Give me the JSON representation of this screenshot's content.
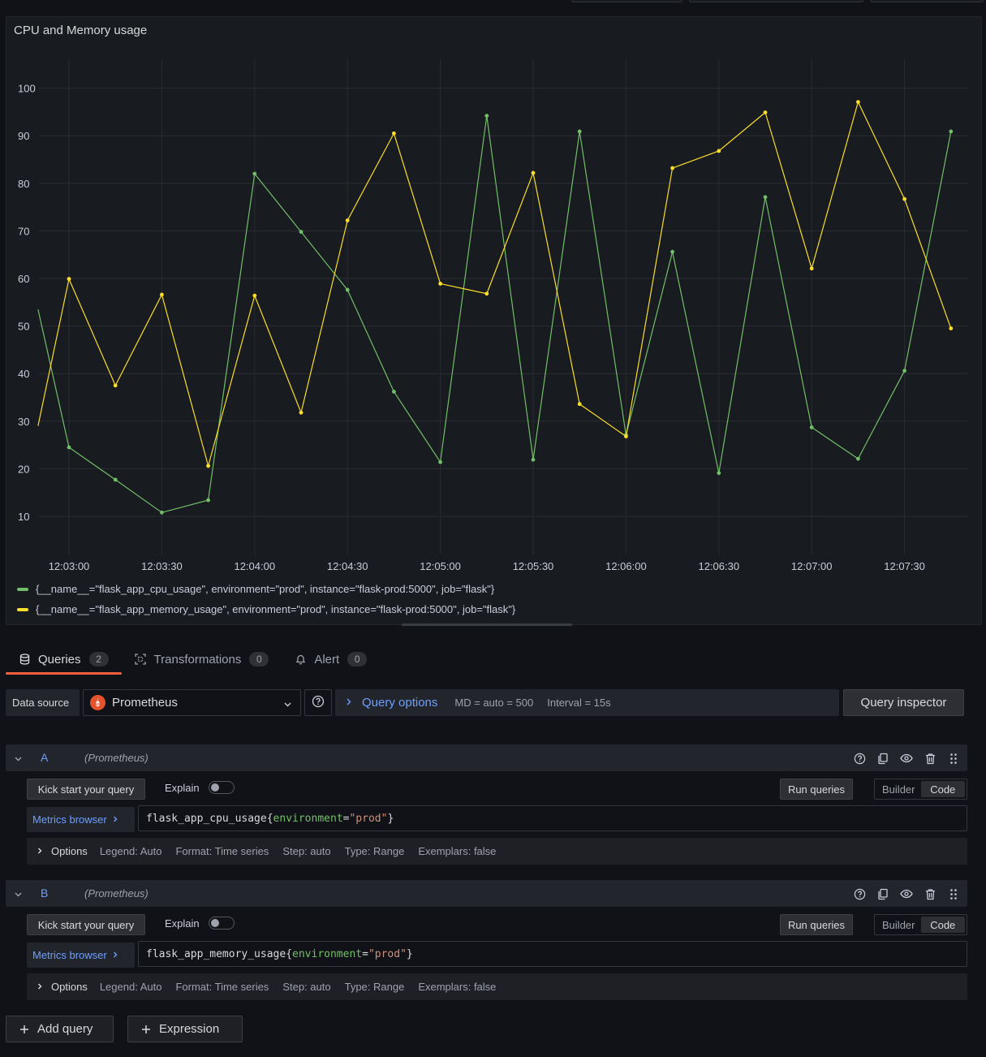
{
  "panel": {
    "title": "CPU and Memory usage"
  },
  "chart_data": {
    "type": "line",
    "title": "CPU and Memory usage",
    "xlabel": "",
    "ylabel": "",
    "ylim": [
      0,
      108
    ],
    "y_ticks": [
      10,
      20,
      30,
      40,
      50,
      60,
      70,
      80,
      90,
      100
    ],
    "x_ticks": [
      "12:03:00",
      "12:03:30",
      "12:04:00",
      "12:04:30",
      "12:05:00",
      "12:05:30",
      "12:06:00",
      "12:06:30",
      "12:07:00",
      "12:07:30"
    ],
    "grid": true,
    "legend_placement": "bottom",
    "x": [
      "12:02:50",
      "12:03:00",
      "12:03:15",
      "12:03:30",
      "12:03:45",
      "12:04:00",
      "12:04:15",
      "12:04:30",
      "12:04:45",
      "12:05:00",
      "12:05:15",
      "12:05:30",
      "12:05:45",
      "12:06:00",
      "12:06:15",
      "12:06:30",
      "12:06:45",
      "12:07:00",
      "12:07:15",
      "12:07:30",
      "12:07:45"
    ],
    "series": [
      {
        "name": "{__name__=\"flask_app_cpu_usage\", environment=\"prod\", instance=\"flask-prod:5000\", job=\"flask\"}",
        "color": "#73bf69",
        "values": [
          53.5,
          24.5,
          17.7,
          10.8,
          13.4,
          82,
          69.8,
          57.6,
          36.2,
          21.4,
          94.2,
          21.9,
          90.9,
          27.1,
          65.6,
          19.1,
          77.1,
          28.7,
          22.1,
          40.6,
          90.9
        ]
      },
      {
        "name": "{__name__=\"flask_app_memory_usage\", environment=\"prod\", instance=\"flask-prod:5000\", job=\"flask\"}",
        "color": "#fade2a",
        "values": [
          29,
          59.9,
          37.5,
          56.6,
          20.6,
          56.4,
          31.8,
          72.2,
          90.5,
          58.9,
          56.8,
          82.2,
          33.6,
          26.8,
          83.2,
          86.8,
          94.9,
          62.1,
          97.1,
          76.7,
          49.5
        ]
      }
    ]
  },
  "tabs": [
    {
      "label": "Queries",
      "count": "2",
      "icon": "database-icon"
    },
    {
      "label": "Transformations",
      "count": "0",
      "icon": "transform-icon"
    },
    {
      "label": "Alert",
      "count": "0",
      "icon": "bell-icon"
    }
  ],
  "datasource": {
    "label": "Data source",
    "selected": "Prometheus",
    "query_options_label": "Query options",
    "md": "MD = auto = 500",
    "interval": "Interval = 15s",
    "inspector_label": "Query inspector"
  },
  "queries": [
    {
      "name": "A",
      "datasource": "(Prometheus)",
      "kick_start": "Kick start your query",
      "explain": "Explain",
      "run": "Run queries",
      "mode_builder": "Builder",
      "mode_code": "Code",
      "metrics_browser": "Metrics browser",
      "expr_metric": "flask_app_cpu_usage",
      "expr_label": "environment",
      "expr_value": "\"prod\"",
      "options_title": "Options",
      "legend": "Legend: Auto",
      "format": "Format: Time series",
      "step": "Step: auto",
      "type": "Type: Range",
      "exemplars": "Exemplars: false"
    },
    {
      "name": "B",
      "datasource": "(Prometheus)",
      "kick_start": "Kick start your query",
      "explain": "Explain",
      "run": "Run queries",
      "mode_builder": "Builder",
      "mode_code": "Code",
      "metrics_browser": "Metrics browser",
      "expr_metric": "flask_app_memory_usage",
      "expr_label": "environment",
      "expr_value": "\"prod\"",
      "options_title": "Options",
      "legend": "Legend: Auto",
      "format": "Format: Time series",
      "step": "Step: auto",
      "type": "Type: Range",
      "exemplars": "Exemplars: false"
    }
  ],
  "actions": {
    "add_query": "Add query",
    "expression": "Expression"
  }
}
